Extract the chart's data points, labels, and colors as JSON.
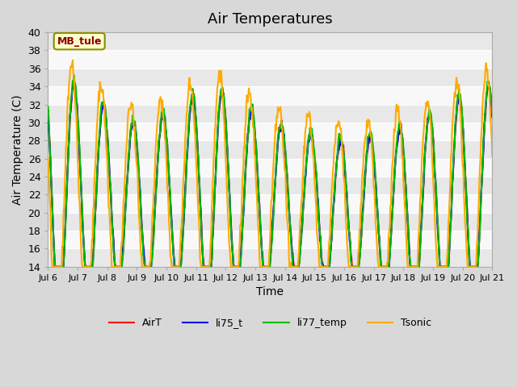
{
  "title": "Air Temperatures",
  "xlabel": "Time",
  "ylabel": "Air Temperature (C)",
  "annotation": "MB_tule",
  "ylim": [
    14,
    40
  ],
  "yticks": [
    14,
    16,
    18,
    20,
    22,
    24,
    26,
    28,
    30,
    32,
    34,
    36,
    38,
    40
  ],
  "xtick_labels": [
    "Jul 6",
    "Jul 7",
    "Jul 8",
    "Jul 9",
    "Jul 10",
    "Jul 11",
    "Jul 12",
    "Jul 13",
    "Jul 14",
    "Jul 15",
    "Jul 16",
    "Jul 17",
    "Jul 18",
    "Jul 19",
    "Jul 20",
    "Jul 21"
  ],
  "line_colors": {
    "AirT": "#ff0000",
    "li75_t": "#0000ff",
    "li77_temp": "#00bb00",
    "Tsonic": "#ffaa00"
  },
  "line_width": 1.5,
  "legend_labels": [
    "AirT",
    "li75_t",
    "li77_temp",
    "Tsonic"
  ],
  "bg_color": "#e8e8e8",
  "plot_bg": "#f0f0f0",
  "title_fontsize": 13,
  "label_fontsize": 10
}
